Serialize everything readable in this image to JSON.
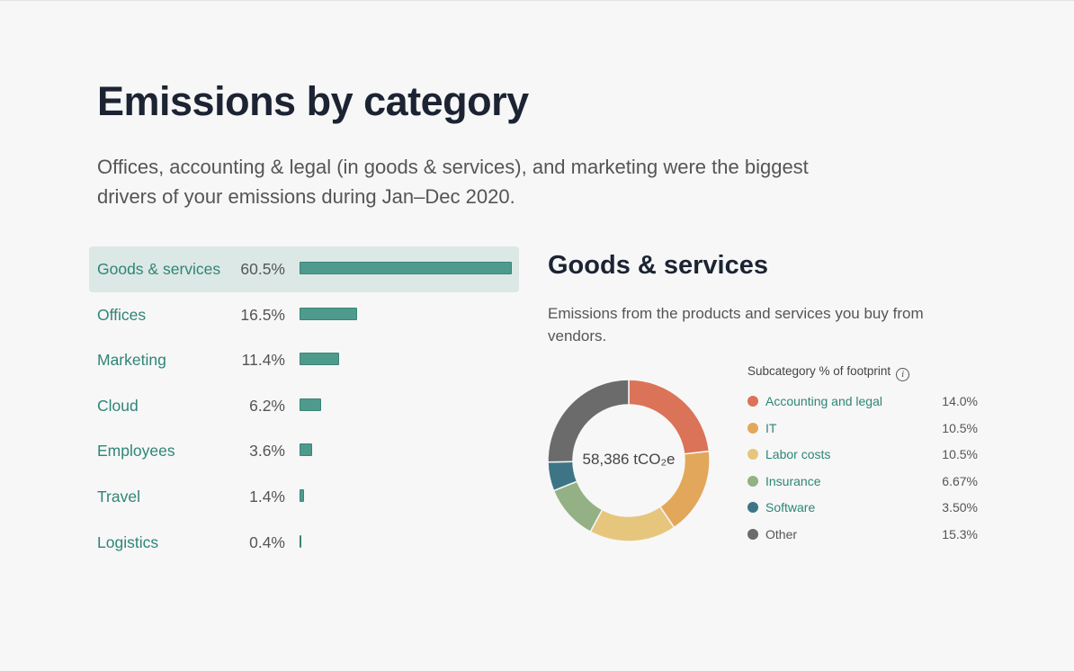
{
  "header": {
    "title": "Emissions by category",
    "subtitle": "Offices, accounting & legal (in goods & services), and marketing were the biggest drivers of your emissions during Jan–Dec 2020."
  },
  "chart_data": [
    {
      "type": "bar",
      "orientation": "horizontal",
      "categories": [
        "Goods & services",
        "Offices",
        "Marketing",
        "Cloud",
        "Employees",
        "Travel",
        "Logistics"
      ],
      "values": [
        60.5,
        16.5,
        11.4,
        6.2,
        3.6,
        1.4,
        0.4
      ],
      "labels": [
        "60.5%",
        "16.5%",
        "11.4%",
        "6.2%",
        "3.6%",
        "1.4%",
        "0.4%"
      ],
      "selected": "Goods & services",
      "bar_color": "#4e9b8e"
    },
    {
      "type": "pie",
      "variant": "donut",
      "title": "Goods & services",
      "description": "Emissions from the products and services you buy from vendors.",
      "center_label": "58,386 tCO₂e",
      "legend_title": "Subcategory % of footprint",
      "slices": [
        {
          "name": "Accounting and legal",
          "value": 14.0,
          "label": "14.0%",
          "color": "#db7358"
        },
        {
          "name": "IT",
          "value": 10.5,
          "label": "10.5%",
          "color": "#e2a75a"
        },
        {
          "name": "Labor costs",
          "value": 10.5,
          "label": "10.5%",
          "color": "#e6c67d"
        },
        {
          "name": "Insurance",
          "value": 6.67,
          "label": "6.67%",
          "color": "#93b184"
        },
        {
          "name": "Software",
          "value": 3.5,
          "label": "3.50%",
          "color": "#3d7586"
        },
        {
          "name": "Other",
          "value": 15.3,
          "label": "15.3%",
          "color": "#6b6b6b"
        }
      ]
    }
  ],
  "info_icon": "i"
}
